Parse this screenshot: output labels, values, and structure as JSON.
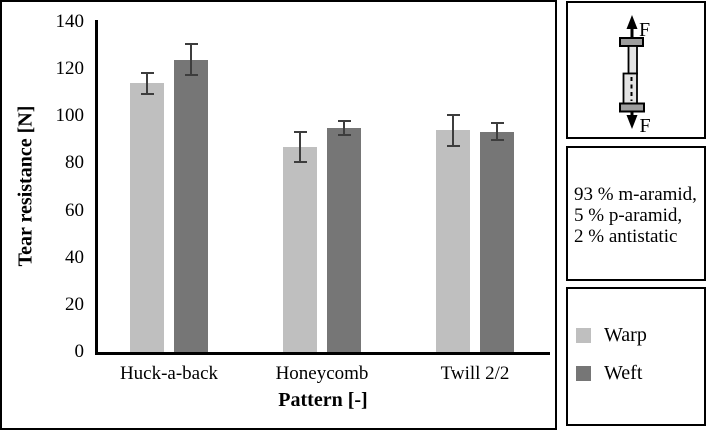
{
  "chart_data": {
    "type": "bar",
    "categories": [
      "Huck-a-back",
      "Honeycomb",
      "Twill 2/2"
    ],
    "series": [
      {
        "name": "Warp",
        "color": "#bfbfbf",
        "values": [
          114,
          87,
          94
        ],
        "errors": [
          4.5,
          6.5,
          6.5
        ]
      },
      {
        "name": "Weft",
        "color": "#767676",
        "values": [
          124,
          95,
          93.5
        ],
        "errors": [
          6.5,
          3,
          3.5
        ]
      }
    ],
    "title": "",
    "xlabel": "Pattern [-]",
    "ylabel": "Tear resistance [N]",
    "ylim": [
      0,
      140
    ],
    "ytick_step": 20,
    "grid": false,
    "legend_position": "separate-right-panel"
  },
  "specimen_panel": {
    "force_label_top": "F",
    "force_label_bottom": "F"
  },
  "composition_panel": {
    "lines": [
      "93 % m-aramid,",
      "5 % p-aramid,",
      "2 % antistatic"
    ]
  },
  "legend_panel": {
    "items": [
      {
        "label": "Warp",
        "color": "#bfbfbf"
      },
      {
        "label": "Weft",
        "color": "#767676"
      }
    ]
  }
}
